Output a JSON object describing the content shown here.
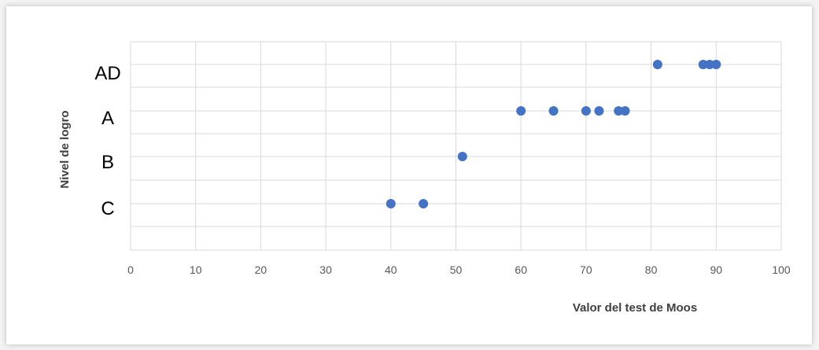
{
  "chart_data": {
    "type": "scatter",
    "xlabel": "Valor del test de Moos",
    "ylabel": "Nivel de logro",
    "xlim": [
      0,
      100
    ],
    "xticks": [
      "0",
      "10",
      "20",
      "30",
      "40",
      "50",
      "60",
      "70",
      "80",
      "90",
      "100"
    ],
    "categories": [
      "C",
      "B",
      "A",
      "AD"
    ],
    "grid": true,
    "colors": {
      "marker": "#4472c4",
      "grid": "#d9d9d9"
    },
    "points": [
      {
        "x": 40,
        "y": "C"
      },
      {
        "x": 45,
        "y": "C"
      },
      {
        "x": 51,
        "y": "B"
      },
      {
        "x": 60,
        "y": "A"
      },
      {
        "x": 65,
        "y": "A"
      },
      {
        "x": 70,
        "y": "A"
      },
      {
        "x": 72,
        "y": "A"
      },
      {
        "x": 75,
        "y": "A"
      },
      {
        "x": 76,
        "y": "A"
      },
      {
        "x": 81,
        "y": "AD"
      },
      {
        "x": 88,
        "y": "AD"
      },
      {
        "x": 89,
        "y": "AD"
      },
      {
        "x": 90,
        "y": "AD"
      }
    ]
  }
}
